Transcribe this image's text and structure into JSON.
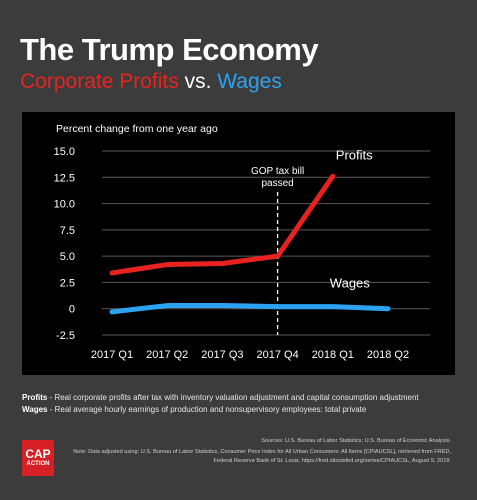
{
  "header": {
    "title": "The Trump Economy",
    "subtitle_profits": "Corporate Profits",
    "subtitle_vs": "vs.",
    "subtitle_wages": "Wages"
  },
  "colors": {
    "profits": "#e8231f",
    "wages": "#2ba3f2",
    "background": "#3c3c3c",
    "panel": "#000000"
  },
  "chart_data": {
    "type": "line",
    "ylabel": "Percent change from one year ago",
    "categories": [
      "2017 Q1",
      "2017 Q2",
      "2017 Q3",
      "2017 Q4",
      "2018 Q1",
      "2018 Q2"
    ],
    "yticks": [
      "15.0",
      "12.5",
      "10.0",
      "7.5",
      "5.0",
      "2.5",
      "0",
      "-2.5"
    ],
    "ylim": [
      -2.5,
      15
    ],
    "grid": true,
    "series": [
      {
        "name": "Profits",
        "color": "#e8231f",
        "points": [
          {
            "x": 0.0,
            "y": 3.4
          },
          {
            "x": 1.0,
            "y": 4.2
          },
          {
            "x": 2.0,
            "y": 4.3
          },
          {
            "x": 3.0,
            "y": 5.0
          },
          {
            "x": 4.0,
            "y": 12.6
          }
        ]
      },
      {
        "name": "Wages",
        "color": "#2ba3f2",
        "points": [
          {
            "x": 0.0,
            "y": -0.3
          },
          {
            "x": 1.0,
            "y": 0.3
          },
          {
            "x": 2.0,
            "y": 0.3
          },
          {
            "x": 3.0,
            "y": 0.2
          },
          {
            "x": 4.0,
            "y": 0.2
          },
          {
            "x": 5.0,
            "y": 0.0
          }
        ]
      }
    ],
    "annotation": {
      "text_line1": "GOP tax bill",
      "text_line2": "passed",
      "x": 3.0
    }
  },
  "footnotes": {
    "profits_label": "Profits",
    "profits_text": " - Real corporate profits after tax with inventory valuation adjustment and capital consumption adjustment",
    "wages_label": "Wages",
    "wages_text": " - Real average hourly earnings of production and nonsupervisory employees: total private",
    "sources": "Sources: U.S. Bureau of Labor Statistics; U.S. Bureau of Economic Analysis.",
    "note": "Note: Data adjusted using: U.S. Bureau of Labor Statistics, Consumer Price Index for All Urban Consumers: All Items [CPIAUCSL], retrieved from FRED, Federal Reserve Bank of St. Louis, https://fred.stlouisfed.org/series/CPIAUCSL, August 9, 2018."
  },
  "logo": {
    "line1": "CAP",
    "line2": "ACTION"
  }
}
